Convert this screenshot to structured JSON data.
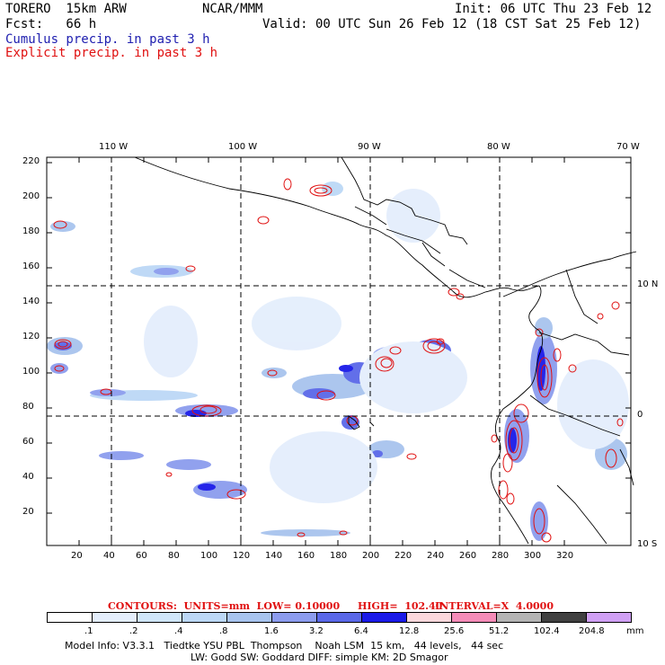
{
  "header": {
    "model": "TORERO  15km ARW",
    "org": "NCAR/MMM",
    "init": "Init: 06 UTC Thu 23 Feb 12",
    "fcst": "Fcst:   66 h",
    "valid": "Valid: 00 UTC Sun 26 Feb 12 (18 CST Sat 25 Feb 12)",
    "line1": "Cumulus precip. in past 3 h",
    "line2": "Explicit precip. in past 3 h"
  },
  "axes": {
    "top_lon": [
      "110 W",
      "100 W",
      "90 W",
      "80 W",
      "70 W"
    ],
    "right_lat": [
      "10 N",
      "0",
      "10 S"
    ],
    "left_y": [
      "220",
      "200",
      "180",
      "160",
      "140",
      "120",
      "100",
      "80",
      "60",
      "40",
      "20"
    ],
    "bottom_x": [
      "20",
      "40",
      "60",
      "80",
      "100",
      "120",
      "140",
      "160",
      "180",
      "200",
      "220",
      "240",
      "260",
      "280",
      "300",
      "320"
    ]
  },
  "contours": {
    "label": "CONTOURS:  UNITS=mm  LOW= 0.10000",
    "high": "HIGH=  102.40",
    "interval": "INTERVAL=X  4.0000"
  },
  "legend": {
    "labels": [
      ".1",
      ".2",
      ".4",
      ".8",
      "1.6",
      "3.2",
      "6.4",
      "12.8",
      "25.6",
      "51.2",
      "102.4",
      "204.8"
    ],
    "unit": "mm",
    "colors": [
      "#ffffff",
      "#e4eefc",
      "#d0e6fa",
      "#bcd8f6",
      "#a8c4ee",
      "#8c9cee",
      "#5a68e8",
      "#1a1ae8",
      "#fcd8dc",
      "#f48cb8",
      "#b4b4b4",
      "#404040",
      "#d0a0f4"
    ]
  },
  "footer": {
    "line1": "Model Info: V3.3.1   Tiedtke YSU PBL  Thompson    Noah LSM  15 km,   44 levels,   44 sec",
    "line2": "LW: Godd SW: Goddard DIFF: simple KM: 2D Smagor"
  }
}
